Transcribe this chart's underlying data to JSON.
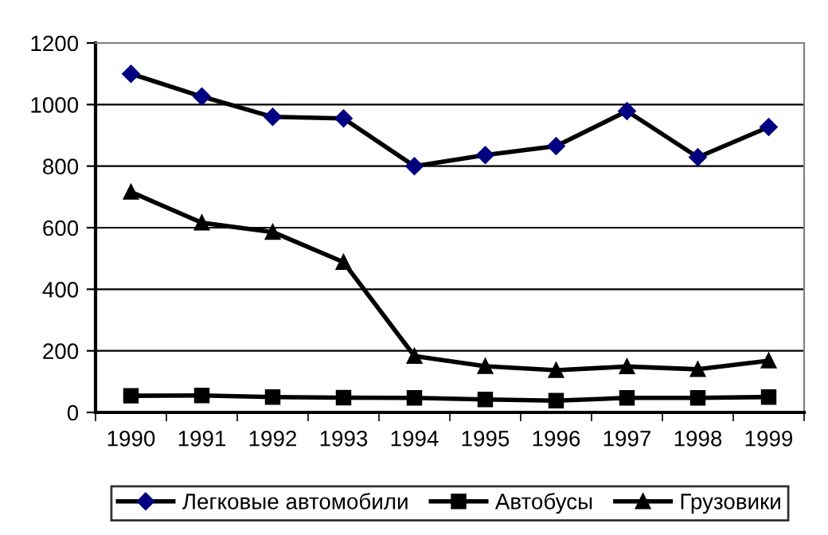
{
  "chart_data": {
    "type": "line",
    "categories": [
      "1990",
      "1991",
      "1992",
      "1993",
      "1994",
      "1995",
      "1996",
      "1997",
      "1998",
      "1999"
    ],
    "series": [
      {
        "name": "Легковые автомобили",
        "color": "#000080",
        "marker": "diamond",
        "values": [
          1100,
          1026,
          960,
          955,
          800,
          836,
          865,
          979,
          829,
          927
        ]
      },
      {
        "name": "Автобусы",
        "color": "#000000",
        "marker": "square",
        "values": [
          54,
          55,
          50,
          48,
          47,
          42,
          38,
          47,
          47,
          50
        ]
      },
      {
        "name": "Грузовики",
        "color": "#000000",
        "marker": "triangle",
        "values": [
          716,
          616,
          586,
          488,
          183,
          150,
          137,
          149,
          140,
          168
        ]
      }
    ],
    "ylim": [
      0,
      1200
    ],
    "yticks": [
      0,
      200,
      400,
      600,
      800,
      1000,
      1200
    ],
    "grid": "y",
    "legend": "bottom",
    "line_style": "solid"
  }
}
